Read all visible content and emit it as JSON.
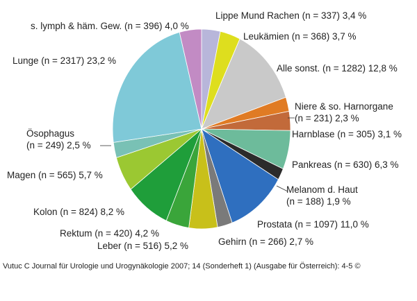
{
  "chart_data": {
    "type": "pie",
    "title": "",
    "legend": "none",
    "slices": [
      {
        "name": "Lippe Mund Rachen",
        "n": 337,
        "percent": 3.4,
        "label_lines": [
          "Lippe Mund Rachen (n = 337) 3,4 %"
        ],
        "color": "#b8b6da"
      },
      {
        "name": "Leukämien",
        "n": 368,
        "percent": 3.7,
        "label_lines": [
          "Leukämien (n = 368) 3,7 %"
        ],
        "color": "#dede1e"
      },
      {
        "name": "Alle sonst.",
        "n": 1282,
        "percent": 12.8,
        "label_lines": [
          "Alle sonst. (n = 1282) 12,8 %"
        ],
        "color": "#c9c9c9"
      },
      {
        "name": "Niere & so. Harnorgane",
        "n": 231,
        "percent": 2.3,
        "label_lines": [
          "Niere & so. Harnorgane",
          "(n = 231) 2,3 %"
        ],
        "color": "#e07b24"
      },
      {
        "name": "Harnblase",
        "n": 305,
        "percent": 3.1,
        "label_lines": [
          "Harnblase (n = 305) 3,1 %"
        ],
        "color": "#c26a3a"
      },
      {
        "name": "Pankreas",
        "n": 630,
        "percent": 6.3,
        "label_lines": [
          "Pankreas (n = 630) 6,3 %"
        ],
        "color": "#6dbb9b"
      },
      {
        "name": "Melanom d. Haut",
        "n": 188,
        "percent": 1.9,
        "label_lines": [
          "Melanom d. Haut",
          "(n = 188) 1,9 %"
        ],
        "color": "#2b2b2b"
      },
      {
        "name": "Prostata",
        "n": 1097,
        "percent": 11.0,
        "label_lines": [
          "Prostata (n = 1097) 11,0 %"
        ],
        "color": "#2f6fbf"
      },
      {
        "name": "Gehirn",
        "n": 266,
        "percent": 2.7,
        "label_lines": [
          "Gehirn (n = 266) 2,7 %"
        ],
        "color": "#7a7a7a"
      },
      {
        "name": "Leber",
        "n": 516,
        "percent": 5.2,
        "label_lines": [
          "Leber (n = 516) 5,2 %"
        ],
        "color": "#c8c01a"
      },
      {
        "name": "Rektum",
        "n": 420,
        "percent": 4.2,
        "label_lines": [
          "Rektum (n = 420) 4,2 %"
        ],
        "color": "#3aa53a"
      },
      {
        "name": "Kolon",
        "n": 824,
        "percent": 8.2,
        "label_lines": [
          "Kolon (n = 824) 8,2 %"
        ],
        "color": "#1f9e3a"
      },
      {
        "name": "Magen",
        "n": 565,
        "percent": 5.7,
        "label_lines": [
          "Magen (n = 565) 5,7 %"
        ],
        "color": "#9bc832"
      },
      {
        "name": "Ösophagus",
        "n": 249,
        "percent": 2.5,
        "label_lines": [
          "Ösophagus",
          "(n = 249) 2,5 %"
        ],
        "color": "#79c1b5"
      },
      {
        "name": "Lunge",
        "n": 2317,
        "percent": 23.2,
        "label_lines": [
          "Lunge (n = 2317) 23,2 %"
        ],
        "color": "#7fc9d8"
      },
      {
        "name": "s. lymph & häm. Gew.",
        "n": 396,
        "percent": 4.0,
        "label_lines": [
          "s. lymph & häm. Gew. (n = 396) 4,0 %"
        ],
        "color": "#c28bc4"
      }
    ]
  },
  "caption": "Vutuc C Journal für Urologie und Urogynäkologie 2007; 14 (Sonderheft 1) (Ausgabe für Österreich): 4-5 ©"
}
